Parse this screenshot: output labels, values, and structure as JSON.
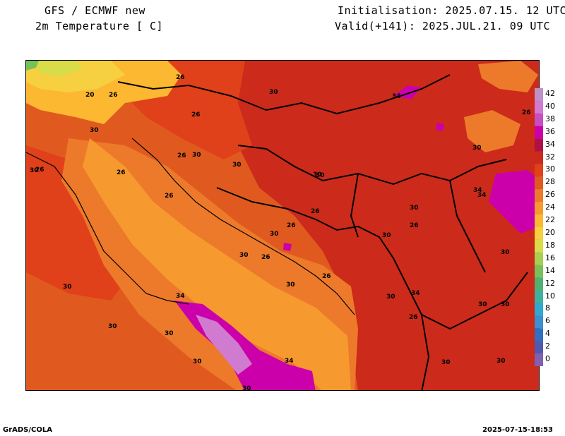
{
  "header": {
    "model": "GFS / ECMWF new",
    "variable": "2m Temperature [ C]",
    "init": "Initialisation: 2025.07.15. 12 UTC",
    "valid": "Valid(+141): 2025.JUL.21. 09 UTC"
  },
  "legend": {
    "ticks": [
      "42",
      "40",
      "38",
      "36",
      "34",
      "32",
      "30",
      "28",
      "26",
      "24",
      "22",
      "20",
      "18",
      "16",
      "14",
      "12",
      "10",
      "8",
      "6",
      "4",
      "2",
      "0"
    ],
    "colors": [
      "#c090c8",
      "#d07ad0",
      "#c84ec0",
      "#cc00aa",
      "#b01048",
      "#cc2a1a",
      "#e0401a",
      "#e05a20",
      "#ec7a2a",
      "#f69a30",
      "#fcb830",
      "#f6d040",
      "#d8dc48",
      "#a8d050",
      "#78c058",
      "#50b070",
      "#40b0a0",
      "#30a8d0",
      "#3a90d0",
      "#3070c0",
      "#5058b0",
      "#8060b0"
    ]
  },
  "contour_labels": [
    "20",
    "26",
    "26",
    "30",
    "26",
    "30",
    "26",
    "30",
    "30",
    "26",
    "30",
    "26",
    "30",
    "26",
    "30",
    "34",
    "30",
    "30",
    "34",
    "30",
    "26",
    "26",
    "30",
    "34",
    "26",
    "30",
    "30",
    "26",
    "30",
    "26",
    "34",
    "30",
    "26",
    "30",
    "30",
    "26",
    "30",
    "30",
    "30",
    "30",
    "30",
    "30",
    "34",
    "34",
    "30"
  ],
  "footer": {
    "left": "GrADS/COLA",
    "right": "2025-07-15-18:53"
  }
}
